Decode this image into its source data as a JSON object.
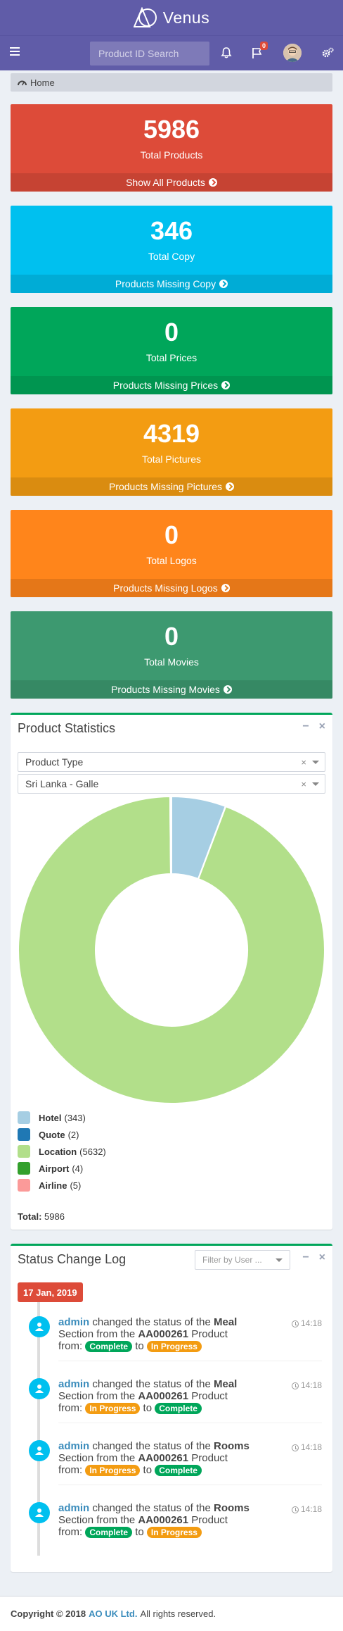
{
  "header": {
    "brand": "Venus",
    "search_placeholder": "Product ID Search",
    "flag_count": "0"
  },
  "breadcrumb": {
    "home": "Home"
  },
  "boxes": [
    {
      "value": "5986",
      "label": "Total Products",
      "link": "Show All Products",
      "color": "#dd4b39"
    },
    {
      "value": "346",
      "label": "Total Copy",
      "link": "Products Missing Copy",
      "color": "#00c0ef"
    },
    {
      "value": "0",
      "label": "Total Prices",
      "link": "Products Missing Prices",
      "color": "#00a65a"
    },
    {
      "value": "4319",
      "label": "Total Pictures",
      "link": "Products Missing Pictures",
      "color": "#f39c12"
    },
    {
      "value": "0",
      "label": "Total Logos",
      "link": "Products Missing Logos",
      "color": "#ff851b"
    },
    {
      "value": "0",
      "label": "Total Movies",
      "link": "Products Missing Movies",
      "color": "#3d9970"
    }
  ],
  "stats": {
    "title": "Product Statistics",
    "filter1": "Product Type",
    "filter2": "Sri Lanka - Galle",
    "total_label": "Total:",
    "total_value": "5986"
  },
  "chart_data": {
    "type": "pie",
    "categories": [
      "Hotel",
      "Quote",
      "Location",
      "Airport",
      "Airline"
    ],
    "values": [
      343,
      2,
      5632,
      4,
      5
    ],
    "colors": [
      "#a6cee3",
      "#1f78b4",
      "#b2df8a",
      "#33a02c",
      "#fb9a99"
    ],
    "legend_counts": [
      "(343)",
      "(2)",
      "(5632)",
      "(4)",
      "(5)"
    ],
    "donut": true
  },
  "log": {
    "title": "Status Change Log",
    "filter_placeholder": "Filter by User ...",
    "date": "17 Jan, 2019",
    "entries": [
      {
        "user": "admin",
        "pre": "changed the status of the",
        "section": "Meal",
        "mid": "Section from the",
        "product": "AA000261",
        "post": "Product from:",
        "from": "Complete",
        "to_word": "to",
        "to": "In Progress",
        "time": "14:18"
      },
      {
        "user": "admin",
        "pre": "changed the status of the",
        "section": "Meal",
        "mid": "Section from the",
        "product": "AA000261",
        "post": "Product from:",
        "from": "In Progress",
        "to_word": "to",
        "to": "Complete",
        "time": "14:18"
      },
      {
        "user": "admin",
        "pre": "changed the status of the",
        "section": "Rooms",
        "mid": "Section from the",
        "product": "AA000261",
        "post": "Product from:",
        "from": "In Progress",
        "to_word": "to",
        "to": "Complete",
        "time": "14:18"
      },
      {
        "user": "admin",
        "pre": "changed the status of the",
        "section": "Rooms",
        "mid": "Section from the",
        "product": "AA000261",
        "post": "Product from:",
        "from": "Complete",
        "to_word": "to",
        "to": "In Progress",
        "time": "14:18"
      }
    ]
  },
  "footer": {
    "copyright": "Copyright © 2018",
    "company": "AO UK Ltd.",
    "rights": "All rights reserved."
  }
}
